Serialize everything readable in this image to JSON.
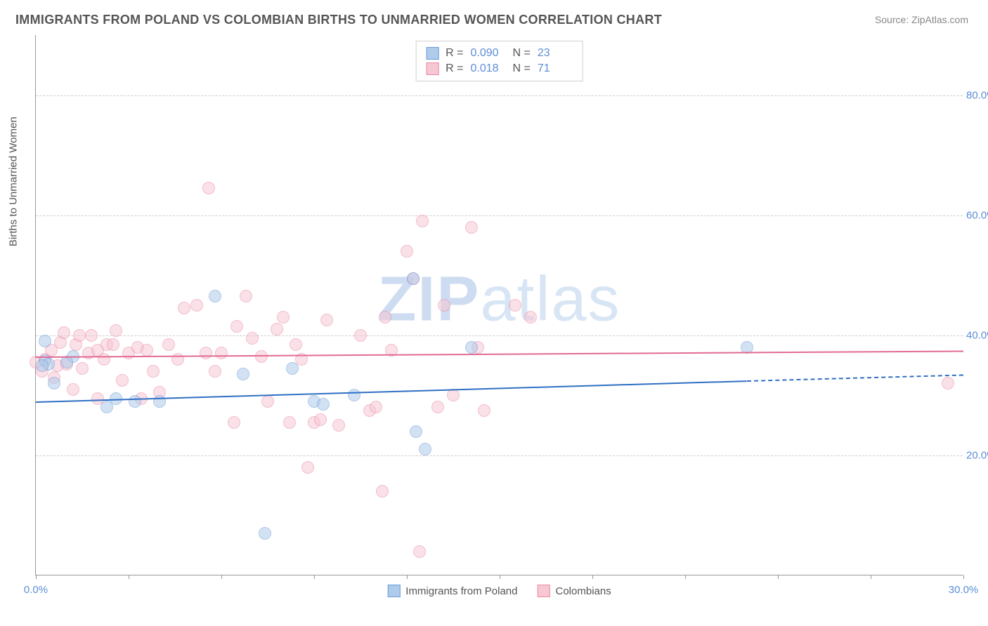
{
  "title": "IMMIGRANTS FROM POLAND VS COLOMBIAN BIRTHS TO UNMARRIED WOMEN CORRELATION CHART",
  "source_label": "Source: ZipAtlas.com",
  "y_axis_label": "Births to Unmarried Women",
  "watermark": "ZIPatlas",
  "chart": {
    "type": "scatter",
    "background_color": "#ffffff",
    "border_color": "#999999",
    "grid_color": "#cccccc",
    "x_domain": [
      0,
      30
    ],
    "y_domain": [
      0,
      90
    ],
    "x_ticks": [
      0,
      3,
      6,
      9,
      12,
      15,
      18,
      21,
      24,
      27,
      30
    ],
    "x_tick_labels": {
      "0": "0.0%",
      "30": "30.0%"
    },
    "y_gridlines": [
      20,
      40,
      60,
      80
    ],
    "y_tick_labels": {
      "20": "20.0%",
      "40": "40.0%",
      "60": "60.0%",
      "80": "80.0%"
    },
    "axis_label_color": "#5b8dd6",
    "axis_label_fontsize": 15,
    "title_color": "#555555",
    "title_fontsize": 18,
    "point_radius": 9,
    "point_opacity": 0.55,
    "point_stroke_opacity": 0.9
  },
  "series": {
    "poland": {
      "label": "Immigrants from Poland",
      "r_value": "0.090",
      "n_value": "23",
      "fill_color": "#aecbeb",
      "stroke_color": "#6a9bd8",
      "trend_color": "#2f6fc4",
      "trend_start": [
        0,
        29.0
      ],
      "trend_end": [
        23,
        32.5
      ],
      "trend_extend_end": [
        30,
        33.5
      ],
      "points": [
        [
          0.3,
          35.8
        ],
        [
          0.4,
          35.2
        ],
        [
          0.6,
          32.0
        ],
        [
          2.3,
          28.0
        ],
        [
          2.6,
          29.5
        ],
        [
          3.2,
          29.0
        ],
        [
          4.0,
          29.0
        ],
        [
          5.8,
          46.5
        ],
        [
          6.7,
          33.5
        ],
        [
          8.3,
          34.5
        ],
        [
          9.0,
          29.0
        ],
        [
          9.3,
          28.5
        ],
        [
          10.3,
          30.0
        ],
        [
          12.2,
          49.5
        ],
        [
          12.3,
          24.0
        ],
        [
          12.6,
          21.0
        ],
        [
          14.1,
          38.0
        ],
        [
          23.0,
          38.0
        ],
        [
          7.4,
          7.0
        ],
        [
          0.3,
          39.0
        ],
        [
          1.2,
          36.5
        ],
        [
          1.0,
          35.5
        ],
        [
          0.2,
          35.0
        ]
      ]
    },
    "colombians": {
      "label": "Colombians",
      "r_value": "0.018",
      "n_value": "71",
      "fill_color": "#f7c7d4",
      "stroke_color": "#e98aa6",
      "trend_color": "#e26a93",
      "trend_start": [
        0,
        36.5
      ],
      "trend_end": [
        30,
        37.5
      ],
      "points": [
        [
          0.0,
          35.5
        ],
        [
          0.3,
          36.0
        ],
        [
          0.5,
          37.5
        ],
        [
          0.7,
          35.0
        ],
        [
          0.8,
          38.8
        ],
        [
          0.9,
          40.5
        ],
        [
          1.0,
          35.2
        ],
        [
          1.2,
          31.0
        ],
        [
          1.3,
          38.5
        ],
        [
          1.5,
          34.5
        ],
        [
          1.7,
          37.0
        ],
        [
          1.8,
          40.0
        ],
        [
          2.0,
          37.5
        ],
        [
          2.2,
          36.0
        ],
        [
          2.3,
          38.5
        ],
        [
          2.5,
          38.5
        ],
        [
          2.6,
          40.8
        ],
        [
          2.8,
          32.5
        ],
        [
          3.0,
          37.0
        ],
        [
          3.3,
          38.0
        ],
        [
          3.4,
          29.5
        ],
        [
          3.6,
          37.5
        ],
        [
          3.8,
          34.0
        ],
        [
          4.0,
          30.5
        ],
        [
          4.3,
          38.5
        ],
        [
          4.6,
          36.0
        ],
        [
          4.8,
          44.5
        ],
        [
          5.5,
          37.0
        ],
        [
          5.6,
          64.5
        ],
        [
          5.8,
          34.0
        ],
        [
          6.0,
          37.0
        ],
        [
          6.4,
          25.5
        ],
        [
          6.8,
          46.5
        ],
        [
          7.0,
          39.5
        ],
        [
          7.3,
          36.5
        ],
        [
          7.5,
          29.0
        ],
        [
          8.0,
          43.0
        ],
        [
          8.2,
          25.5
        ],
        [
          8.4,
          38.5
        ],
        [
          8.6,
          36.0
        ],
        [
          8.8,
          18.0
        ],
        [
          9.0,
          25.5
        ],
        [
          9.2,
          26.0
        ],
        [
          9.4,
          42.5
        ],
        [
          9.8,
          25.0
        ],
        [
          10.5,
          40.0
        ],
        [
          10.8,
          27.5
        ],
        [
          11.0,
          28.0
        ],
        [
          11.2,
          14.0
        ],
        [
          11.3,
          43.0
        ],
        [
          11.5,
          37.5
        ],
        [
          12.0,
          54.0
        ],
        [
          12.2,
          49.5
        ],
        [
          12.4,
          4.0
        ],
        [
          12.5,
          59.0
        ],
        [
          13.0,
          28.0
        ],
        [
          13.2,
          45.0
        ],
        [
          13.5,
          30.0
        ],
        [
          14.1,
          58.0
        ],
        [
          14.3,
          38.0
        ],
        [
          14.5,
          27.5
        ],
        [
          15.5,
          45.0
        ],
        [
          16.0,
          43.0
        ],
        [
          29.5,
          32.0
        ],
        [
          0.2,
          34.0
        ],
        [
          0.6,
          33.0
        ],
        [
          1.4,
          40.0
        ],
        [
          2.0,
          29.5
        ],
        [
          5.2,
          45.0
        ],
        [
          6.5,
          41.5
        ],
        [
          7.8,
          41.0
        ]
      ]
    }
  },
  "legend_top": {
    "r_label": "R =",
    "n_label": "N ="
  },
  "legend_bottom": {
    "items": [
      "poland",
      "colombians"
    ]
  }
}
